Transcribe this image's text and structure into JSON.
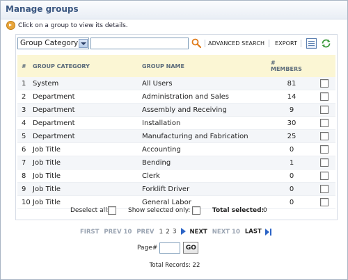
{
  "window": {
    "title": "Manage groups"
  },
  "hint": "Click on a group to view its details.",
  "toolbar": {
    "filter_select": "Group Category",
    "search_value": "",
    "advanced_search": "ADVANCED SEARCH",
    "export": "EXPORT"
  },
  "table": {
    "headers": [
      "#",
      "GROUP CATEGORY",
      "GROUP NAME",
      "#",
      "MEMBERS"
    ],
    "rows": [
      {
        "num": "1",
        "category": "System",
        "name": "All Users",
        "members": "81"
      },
      {
        "num": "2",
        "category": "Department",
        "name": "Administration and Sales",
        "members": "14"
      },
      {
        "num": "3",
        "category": "Department",
        "name": "Assembly and Receiving",
        "members": "9"
      },
      {
        "num": "4",
        "category": "Department",
        "name": "Installation",
        "members": "30"
      },
      {
        "num": "5",
        "category": "Department",
        "name": "Manufacturing and Fabrication",
        "members": "25"
      },
      {
        "num": "6",
        "category": "Job Title",
        "name": "Accounting",
        "members": "0"
      },
      {
        "num": "7",
        "category": "Job Title",
        "name": "Bending",
        "members": "1"
      },
      {
        "num": "8",
        "category": "Job Title",
        "name": "Clerk",
        "members": "0"
      },
      {
        "num": "9",
        "category": "Job Title",
        "name": "Forklift Driver",
        "members": "0"
      },
      {
        "num": "10",
        "category": "Job Title",
        "name": "General Labor",
        "members": "0"
      }
    ]
  },
  "footer": {
    "deselect_all": "Deselect all:",
    "show_selected": "Show selected only:",
    "total_selected_label": "Total selected:",
    "total_selected_value": "0"
  },
  "pager": {
    "first": "FIRST",
    "prev10": "PREV 10",
    "prev": "PREV",
    "pages": [
      "1",
      "2",
      "3"
    ],
    "next": "NEXT",
    "next10": "NEXT 10",
    "last": "LAST",
    "page_label": "Page#",
    "page_value": "",
    "go": "GO"
  },
  "total_records": "Total Records: 22"
}
